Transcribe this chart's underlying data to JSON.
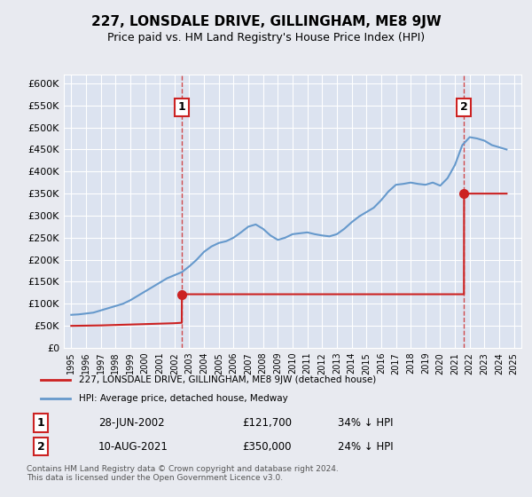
{
  "title": "227, LONSDALE DRIVE, GILLINGHAM, ME8 9JW",
  "subtitle": "Price paid vs. HM Land Registry's House Price Index (HPI)",
  "ylim": [
    0,
    620000
  ],
  "yticks": [
    0,
    50000,
    100000,
    150000,
    200000,
    250000,
    300000,
    350000,
    400000,
    450000,
    500000,
    550000,
    600000
  ],
  "ytick_labels": [
    "£0",
    "£50K",
    "£100K",
    "£150K",
    "£200K",
    "£250K",
    "£300K",
    "£350K",
    "£400K",
    "£450K",
    "£500K",
    "£550K",
    "£600K"
  ],
  "background_color": "#e8eaf0",
  "plot_bg": "#dce3f0",
  "hpi_color": "#6699cc",
  "price_color": "#cc2222",
  "annotation_color": "#cc2222",
  "sale1_date": 2002.49,
  "sale1_price": 121700,
  "sale1_label": "1",
  "sale2_date": 2021.61,
  "sale2_price": 350000,
  "sale2_label": "2",
  "legend_label_price": "227, LONSDALE DRIVE, GILLINGHAM, ME8 9JW (detached house)",
  "legend_label_hpi": "HPI: Average price, detached house, Medway",
  "note1_label": "1",
  "note1_date": "28-JUN-2002",
  "note1_price": "£121,700",
  "note1_hpi": "34% ↓ HPI",
  "note2_label": "2",
  "note2_date": "10-AUG-2021",
  "note2_price": "£350,000",
  "note2_hpi": "24% ↓ HPI",
  "footer": "Contains HM Land Registry data © Crown copyright and database right 2024.\nThis data is licensed under the Open Government Licence v3.0."
}
